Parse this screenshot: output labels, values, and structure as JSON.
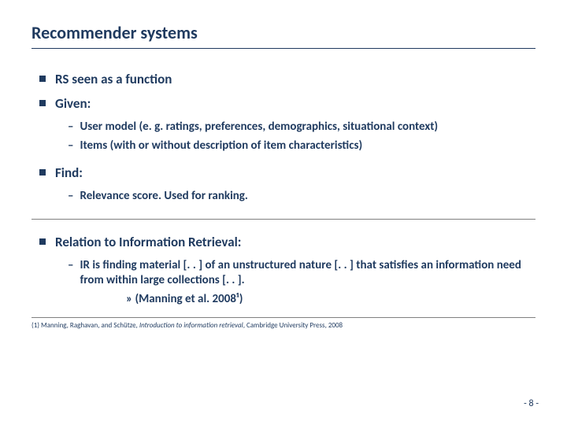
{
  "title": "Recommender systems",
  "bullets": {
    "b1": "RS seen as a function",
    "b2": "Given:",
    "b2_sub1": "User model (e. g. ratings, preferences, demographics, situational context)",
    "b2_sub2": "Items (with or without description of item characteristics)",
    "b3": "Find:",
    "b3_sub1": "Relevance score. Used for ranking.",
    "b4": "Relation to Information Retrieval:",
    "b4_sub1": "IR is finding material [. . ] of an unstructured nature [. . ] that satisfies an information need from within large collections [. . ].",
    "b4_cite": "»  (Manning et al. 2008¹)"
  },
  "footnote_prefix": "(1) Manning, Raghavan, and Schütze, ",
  "footnote_italic": "Introduction to information retrieval",
  "footnote_suffix": ", Cambridge University Press, 2008",
  "page_num": "- 8 -",
  "colors": {
    "text": "#1f3a5f",
    "rule": "#808080",
    "bg": "#ffffff"
  },
  "fonts": {
    "title_size": 22,
    "l1_size": 17,
    "l2_size": 15,
    "footnote_size": 9
  }
}
